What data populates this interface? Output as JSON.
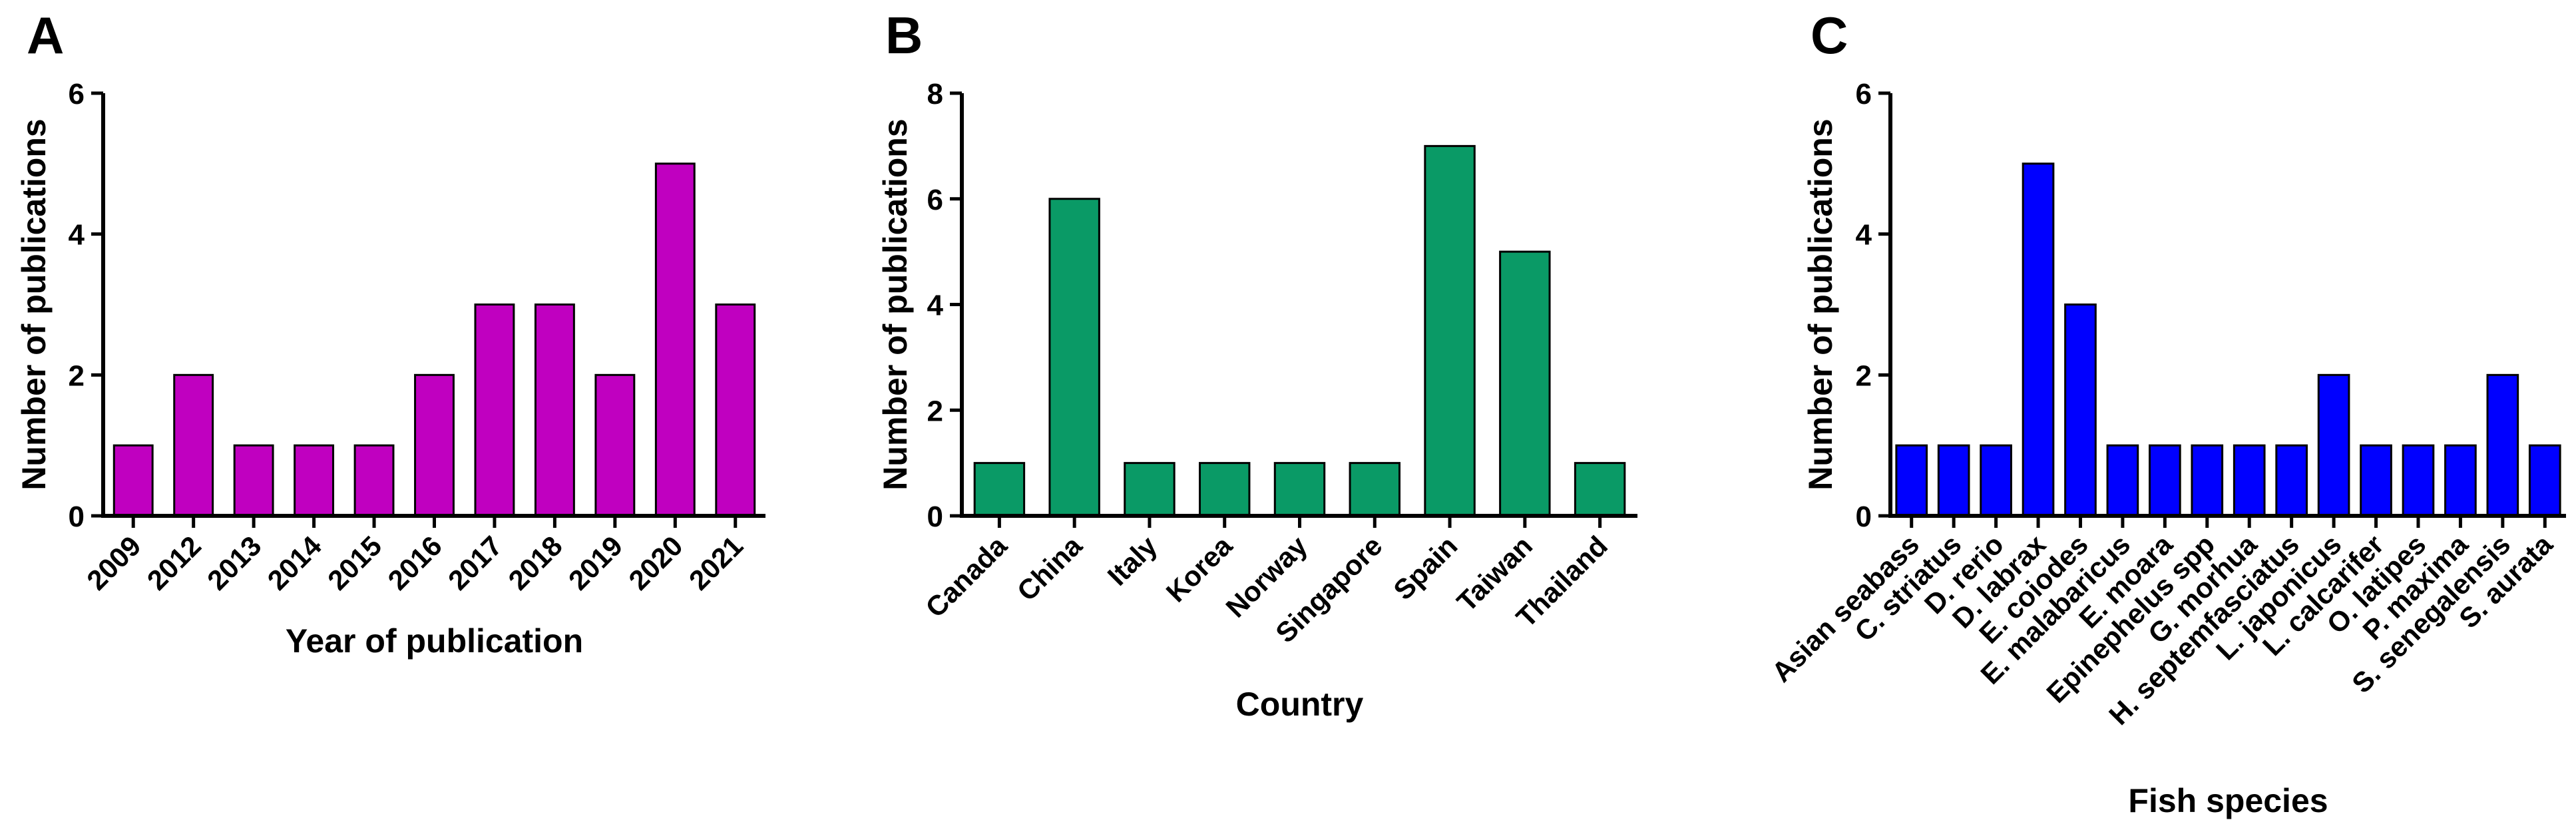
{
  "figure": {
    "panels": [
      "A",
      "B",
      "C"
    ]
  },
  "chart_data": [
    {
      "panel": "A",
      "type": "bar",
      "title": "",
      "xlabel": "Year of publication",
      "ylabel": "Number of publications",
      "categories": [
        "2009",
        "2012",
        "2013",
        "2014",
        "2015",
        "2016",
        "2017",
        "2018",
        "2019",
        "2020",
        "2021"
      ],
      "values": [
        1,
        2,
        1,
        1,
        1,
        2,
        3,
        3,
        2,
        5,
        3
      ],
      "ylim": [
        0,
        6
      ],
      "yticks": [
        0,
        2,
        4,
        6
      ],
      "color": "#c000c0",
      "grid": false,
      "legend": "none"
    },
    {
      "panel": "B",
      "type": "bar",
      "title": "",
      "xlabel": "Country",
      "ylabel": "Number of publications",
      "categories": [
        "Canada",
        "China",
        "Italy",
        "Korea",
        "Norway",
        "Singapore",
        "Spain",
        "Taiwan",
        "Thailand"
      ],
      "values": [
        1,
        6,
        1,
        1,
        1,
        1,
        7,
        5,
        1
      ],
      "ylim": [
        0,
        8
      ],
      "yticks": [
        0,
        2,
        4,
        6,
        8
      ],
      "color": "#0a9a66",
      "grid": false,
      "legend": "none"
    },
    {
      "panel": "C",
      "type": "bar",
      "title": "",
      "xlabel": "Fish species",
      "ylabel": "Number of publications",
      "categories": [
        "Asian seabass",
        "C. striatus",
        "D. rerio",
        "D. labrax",
        "E. coiodes",
        "E. malabaricus",
        "E. moara",
        "Epinephelus spp",
        "G. morhua",
        "H. septemfasciatus",
        "L. japonicus",
        "L. calcarifer",
        "O. latipes",
        "P. maxima",
        "S. senegalensis",
        "S. aurata"
      ],
      "values": [
        1,
        1,
        1,
        5,
        3,
        1,
        1,
        1,
        1,
        1,
        2,
        1,
        1,
        1,
        2,
        1
      ],
      "ylim": [
        0,
        6
      ],
      "yticks": [
        0,
        2,
        4,
        6
      ],
      "color": "#0000ff",
      "grid": false,
      "legend": "none"
    }
  ]
}
